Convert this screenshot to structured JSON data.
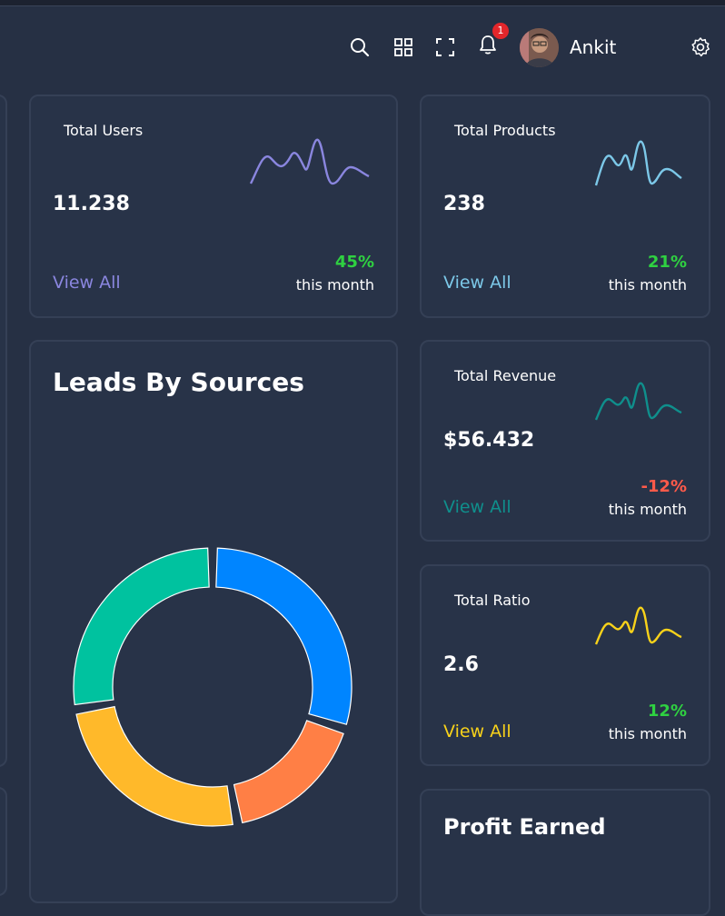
{
  "header": {
    "notification_count": "1",
    "user_name": "Ankit"
  },
  "stats": [
    {
      "title": "Total Users",
      "value": "11.238",
      "link": "View All",
      "change": "45%",
      "period": "this month",
      "accent": "#8a86df",
      "change_color": "#2fd141"
    },
    {
      "title": "Total Products",
      "value": "238",
      "link": "View All",
      "change": "21%",
      "period": "this month",
      "accent": "#7cc8e8",
      "change_color": "#2fd141"
    },
    {
      "title": "Total Revenue",
      "value": "$56.432",
      "link": "View All",
      "change": "-12%",
      "period": "this month",
      "accent": "#0f8f8c",
      "change_color": "#ff5a4a"
    },
    {
      "title": "Total Ratio",
      "value": "2.6",
      "link": "View All",
      "change": "12%",
      "period": "this month",
      "accent": "#f8d21a",
      "change_color": "#2fd141"
    }
  ],
  "leads": {
    "title": "Leads By Sources"
  },
  "profit": {
    "title": "Profit Earned"
  },
  "chart_data": {
    "type": "pie",
    "title": "Leads By Sources",
    "categories": [
      "Blue",
      "Orange",
      "Yellow",
      "Green"
    ],
    "values": [
      25,
      14,
      21,
      23
    ],
    "colors": [
      "#0085ff",
      "#ff7f45",
      "#ffb92a",
      "#00c29f"
    ]
  }
}
